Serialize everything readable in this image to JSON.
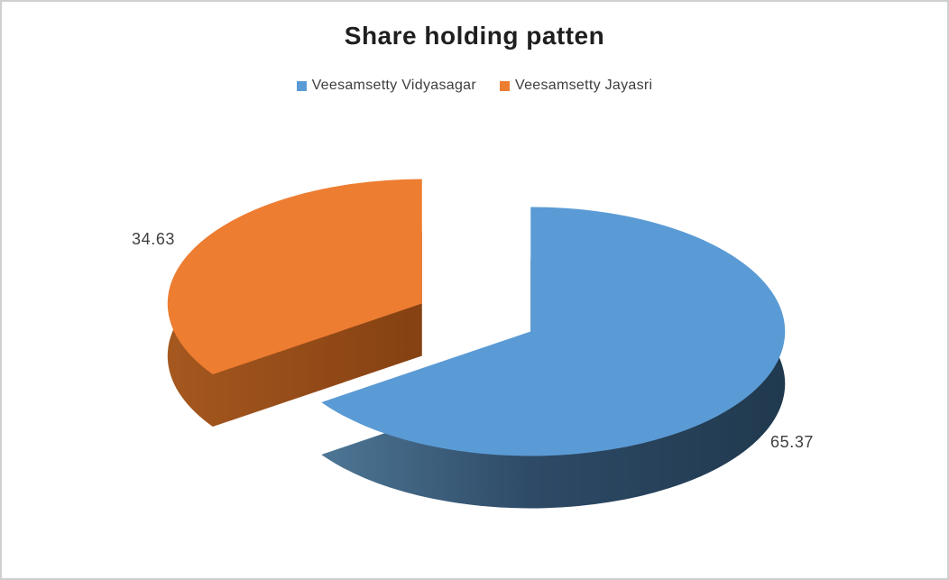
{
  "chart_data": {
    "type": "pie",
    "title": "Share holding patten",
    "style_3d": true,
    "exploded": true,
    "start_angle_deg": 0,
    "legend_position": "top",
    "slices": [
      {
        "label": "Veesamsetty Vidyasagar",
        "value": 65.37,
        "display": "65.37",
        "color": "#5B9BD5",
        "side_gradient": [
          "#54809F",
          "#2E4A66",
          "#20394E"
        ]
      },
      {
        "label": "Veesamsetty Jayasri",
        "value": 34.63,
        "display": "34.63",
        "color": "#ED7D31",
        "side_gradient": [
          "#A5581F",
          "#854112",
          "#6E3208"
        ]
      }
    ]
  },
  "styles": {
    "background": "#FFFFFF",
    "frame_border": "#CFCFCF",
    "title_color": "#1F1F1F",
    "text_color": "#3F3F3F",
    "accent_blue": "#5B9BD5",
    "accent_orange": "#ED7D31"
  }
}
